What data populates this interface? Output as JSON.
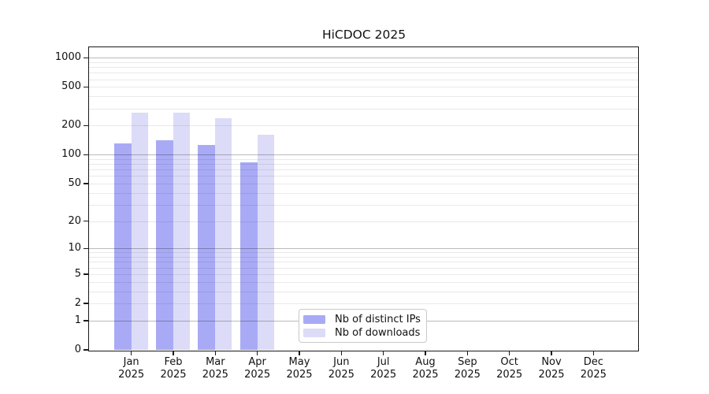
{
  "window": {
    "background": "#ffffff"
  },
  "chart_data": {
    "type": "bar",
    "title": "HiCDOC 2025",
    "y_scale": "log1p",
    "ylim": [
      0,
      1285
    ],
    "grid": true,
    "legend_position": "inside-bottom-center",
    "yticks": [
      0,
      1,
      2,
      5,
      10,
      20,
      50,
      100,
      200,
      500,
      1000
    ],
    "categories": [
      {
        "month": "Jan",
        "year": "2025"
      },
      {
        "month": "Feb",
        "year": "2025"
      },
      {
        "month": "Mar",
        "year": "2025"
      },
      {
        "month": "Apr",
        "year": "2025"
      },
      {
        "month": "May",
        "year": "2025"
      },
      {
        "month": "Jun",
        "year": "2025"
      },
      {
        "month": "Jul",
        "year": "2025"
      },
      {
        "month": "Aug",
        "year": "2025"
      },
      {
        "month": "Sep",
        "year": "2025"
      },
      {
        "month": "Oct",
        "year": "2025"
      },
      {
        "month": "Nov",
        "year": "2025"
      },
      {
        "month": "Dec",
        "year": "2025"
      }
    ],
    "series": [
      {
        "name": "Nb of distinct IPs",
        "color": "#a9aaf5",
        "values": [
          130,
          142,
          127,
          83,
          null,
          null,
          null,
          null,
          null,
          null,
          null,
          null
        ]
      },
      {
        "name": "Nb of downloads",
        "color": "#dcdcf8",
        "values": [
          270,
          270,
          237,
          160,
          null,
          null,
          null,
          null,
          null,
          null,
          null,
          null
        ]
      }
    ]
  }
}
